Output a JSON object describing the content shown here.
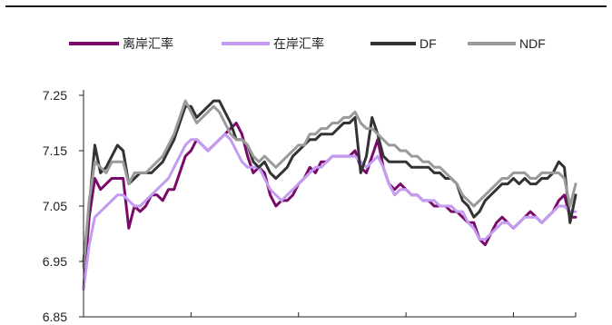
{
  "chart_data": {
    "type": "line",
    "title": "",
    "xlabel": "",
    "ylabel": "",
    "ylim": [
      6.85,
      7.25
    ],
    "yticks": [
      "6.85",
      "6.95",
      "7.05",
      "7.15",
      "7.25"
    ],
    "x_count": 88,
    "x_tick_positions": [
      0,
      19,
      38,
      57,
      76,
      87
    ],
    "grid": false,
    "legend_position": "top",
    "series": [
      {
        "name": "离岸汇率",
        "color": "#7a0a6a",
        "width": 3,
        "values": [
          6.9,
          7.03,
          7.1,
          7.08,
          7.09,
          7.1,
          7.1,
          7.1,
          7.01,
          7.05,
          7.04,
          7.05,
          7.07,
          7.07,
          7.06,
          7.08,
          7.08,
          7.11,
          7.14,
          7.15,
          7.17,
          7.16,
          7.15,
          7.16,
          7.17,
          7.18,
          7.19,
          7.2,
          7.18,
          7.14,
          7.11,
          7.12,
          7.11,
          7.07,
          7.05,
          7.06,
          7.06,
          7.07,
          7.09,
          7.1,
          7.12,
          7.11,
          7.13,
          7.13,
          7.14,
          7.14,
          7.14,
          7.14,
          7.15,
          7.12,
          7.11,
          7.14,
          7.17,
          7.12,
          7.09,
          7.08,
          7.09,
          7.08,
          7.07,
          7.07,
          7.06,
          7.06,
          7.05,
          7.05,
          7.05,
          7.04,
          7.04,
          7.03,
          7.02,
          7.02,
          6.99,
          6.98,
          7.0,
          7.02,
          7.03,
          7.02,
          7.01,
          7.02,
          7.03,
          7.04,
          7.03,
          7.02,
          7.03,
          7.04,
          7.06,
          7.07,
          7.03,
          7.03
        ]
      },
      {
        "name": "在岸汇率",
        "color": "#c39bf0",
        "width": 3,
        "values": [
          6.9,
          6.98,
          7.03,
          7.04,
          7.05,
          7.06,
          7.07,
          7.07,
          7.06,
          7.05,
          7.05,
          7.06,
          7.07,
          7.08,
          7.09,
          7.1,
          7.12,
          7.14,
          7.16,
          7.17,
          7.17,
          7.16,
          7.15,
          7.16,
          7.17,
          7.18,
          7.17,
          7.15,
          7.13,
          7.12,
          7.12,
          7.12,
          7.1,
          7.08,
          7.07,
          7.06,
          7.07,
          7.08,
          7.09,
          7.1,
          7.11,
          7.12,
          7.12,
          7.13,
          7.14,
          7.14,
          7.14,
          7.14,
          7.14,
          7.13,
          7.12,
          7.13,
          7.14,
          7.12,
          7.09,
          7.07,
          7.08,
          7.08,
          7.07,
          7.07,
          7.06,
          7.06,
          7.06,
          7.05,
          7.05,
          7.05,
          7.04,
          7.04,
          7.02,
          7.01,
          6.99,
          6.99,
          7.0,
          7.01,
          7.02,
          7.02,
          7.01,
          7.02,
          7.03,
          7.03,
          7.03,
          7.02,
          7.03,
          7.04,
          7.05,
          7.05,
          7.04,
          7.04
        ]
      },
      {
        "name": "DF",
        "color": "#333333",
        "width": 3,
        "values": [
          6.95,
          7.05,
          7.16,
          7.11,
          7.12,
          7.14,
          7.16,
          7.15,
          7.09,
          7.1,
          7.11,
          7.11,
          7.11,
          7.12,
          7.13,
          7.15,
          7.17,
          7.2,
          7.23,
          7.23,
          7.21,
          7.22,
          7.23,
          7.24,
          7.24,
          7.22,
          7.2,
          7.17,
          7.17,
          7.16,
          7.13,
          7.12,
          7.13,
          7.11,
          7.1,
          7.11,
          7.12,
          7.14,
          7.15,
          7.16,
          7.17,
          7.17,
          7.18,
          7.18,
          7.18,
          7.19,
          7.2,
          7.2,
          7.21,
          7.11,
          7.14,
          7.21,
          7.18,
          7.14,
          7.13,
          7.13,
          7.13,
          7.13,
          7.12,
          7.12,
          7.12,
          7.12,
          7.11,
          7.11,
          7.1,
          7.1,
          7.09,
          7.06,
          7.05,
          7.03,
          7.04,
          7.06,
          7.07,
          7.08,
          7.09,
          7.09,
          7.1,
          7.09,
          7.1,
          7.09,
          7.09,
          7.1,
          7.1,
          7.11,
          7.13,
          7.12,
          7.02,
          7.07
        ]
      },
      {
        "name": "NDF",
        "color": "#9a9a9a",
        "width": 3,
        "values": [
          6.94,
          7.06,
          7.13,
          7.12,
          7.11,
          7.13,
          7.13,
          7.13,
          7.09,
          7.11,
          7.11,
          7.11,
          7.12,
          7.13,
          7.14,
          7.16,
          7.18,
          7.21,
          7.24,
          7.22,
          7.2,
          7.21,
          7.22,
          7.23,
          7.22,
          7.2,
          7.18,
          7.17,
          7.17,
          7.16,
          7.14,
          7.13,
          7.14,
          7.13,
          7.12,
          7.13,
          7.14,
          7.15,
          7.16,
          7.16,
          7.18,
          7.18,
          7.19,
          7.19,
          7.2,
          7.2,
          7.21,
          7.21,
          7.22,
          7.2,
          7.19,
          7.19,
          7.18,
          7.17,
          7.16,
          7.16,
          7.15,
          7.15,
          7.14,
          7.14,
          7.13,
          7.13,
          7.12,
          7.12,
          7.11,
          7.1,
          7.09,
          7.07,
          7.06,
          7.05,
          7.06,
          7.07,
          7.08,
          7.09,
          7.1,
          7.1,
          7.11,
          7.11,
          7.11,
          7.1,
          7.1,
          7.11,
          7.11,
          7.11,
          7.11,
          7.1,
          7.05,
          7.09
        ]
      }
    ]
  }
}
